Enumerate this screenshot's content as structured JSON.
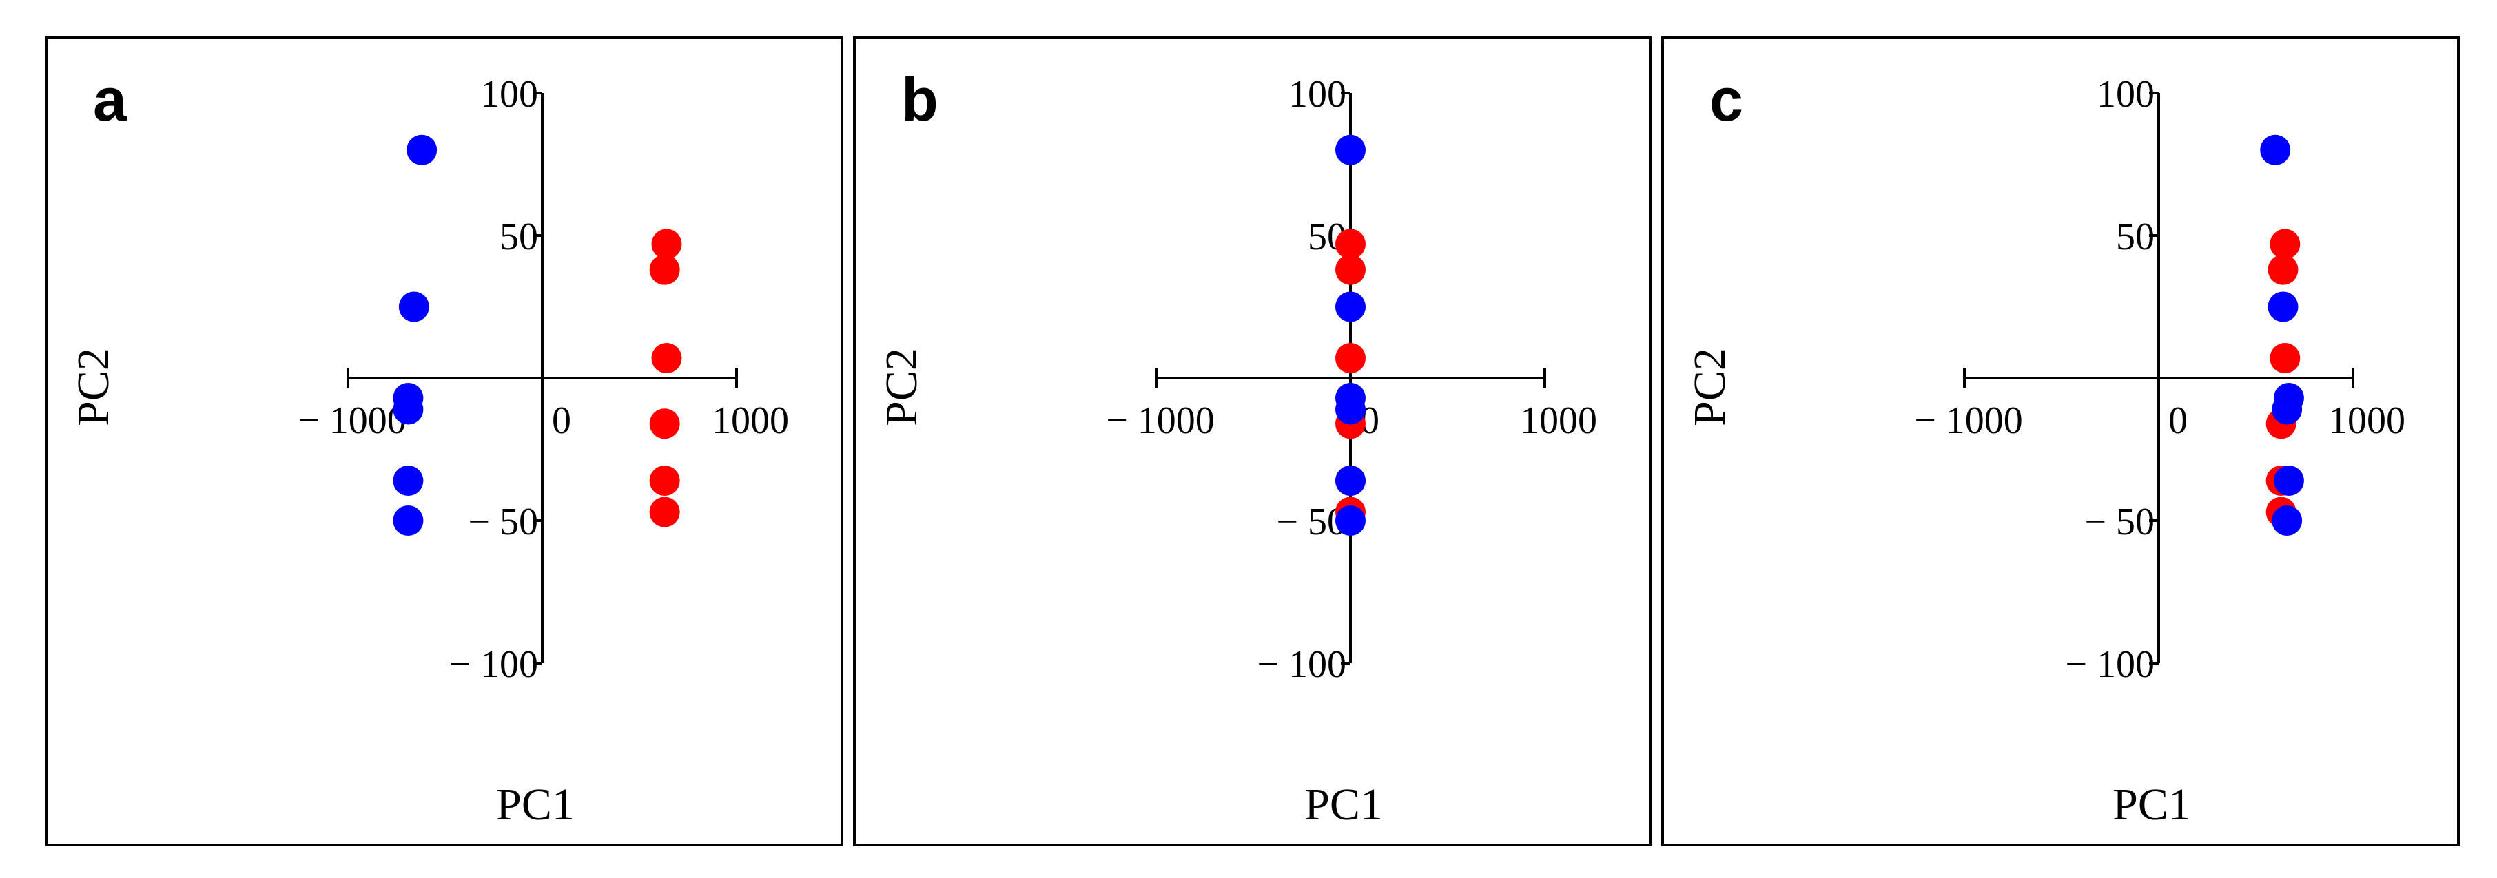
{
  "colors": {
    "group_red": "#ff0000",
    "group_blue": "#0000ff",
    "axes": "#000000",
    "background": "#ffffff"
  },
  "chart_data": [
    {
      "type": "scatter",
      "panel_label": "a",
      "xlabel": "PC1",
      "ylabel": "PC2",
      "xlim": [
        -1000,
        1000
      ],
      "ylim": [
        -100,
        100
      ],
      "x_ticks": [
        -1000,
        0,
        1000
      ],
      "x_tick_labels": [
        "− 1000",
        "0",
        "1000"
      ],
      "y_ticks": [
        -100,
        -50,
        50,
        100
      ],
      "y_tick_labels": [
        "− 100",
        "− 50",
        "50",
        "100"
      ],
      "series": [
        {
          "name": "red",
          "color": "#ff0000",
          "points": [
            [
              640,
              47
            ],
            [
              630,
              38
            ],
            [
              640,
              7
            ],
            [
              630,
              -16
            ],
            [
              630,
              -36
            ],
            [
              630,
              -47
            ]
          ]
        },
        {
          "name": "blue",
          "color": "#0000ff",
          "points": [
            [
              -620,
              80
            ],
            [
              -660,
              25
            ],
            [
              -690,
              -7
            ],
            [
              -690,
              -11
            ],
            [
              -690,
              -36
            ],
            [
              -690,
              -50
            ]
          ]
        }
      ]
    },
    {
      "type": "scatter",
      "panel_label": "b",
      "xlabel": "PC1",
      "ylabel": "PC2",
      "xlim": [
        -1000,
        1000
      ],
      "ylim": [
        -100,
        100
      ],
      "x_ticks": [
        -1000,
        0,
        1000
      ],
      "x_tick_labels": [
        "− 1000",
        "0",
        "1000"
      ],
      "y_ticks": [
        -100,
        -50,
        50,
        100
      ],
      "y_tick_labels": [
        "− 100",
        "− 50",
        "50",
        "100"
      ],
      "series": [
        {
          "name": "red",
          "color": "#ff0000",
          "points": [
            [
              0,
              47
            ],
            [
              0,
              38
            ],
            [
              0,
              7
            ],
            [
              0,
              -16
            ],
            [
              0,
              -36
            ],
            [
              0,
              -47
            ]
          ]
        },
        {
          "name": "blue",
          "color": "#0000ff",
          "points": [
            [
              0,
              80
            ],
            [
              0,
              25
            ],
            [
              0,
              -7
            ],
            [
              0,
              -11
            ],
            [
              0,
              -36
            ],
            [
              0,
              -50
            ]
          ]
        }
      ]
    },
    {
      "type": "scatter",
      "panel_label": "c",
      "xlabel": "PC1",
      "ylabel": "PC2",
      "xlim": [
        -1000,
        1000
      ],
      "ylim": [
        -100,
        100
      ],
      "x_ticks": [
        -1000,
        0,
        1000
      ],
      "x_tick_labels": [
        "− 1000",
        "0",
        "1000"
      ],
      "y_ticks": [
        -100,
        -50,
        50,
        100
      ],
      "y_tick_labels": [
        "− 100",
        "− 50",
        "50",
        "100"
      ],
      "series": [
        {
          "name": "red",
          "color": "#ff0000",
          "points": [
            [
              650,
              47
            ],
            [
              640,
              38
            ],
            [
              650,
              7
            ],
            [
              630,
              -16
            ],
            [
              630,
              -36
            ],
            [
              630,
              -47
            ]
          ]
        },
        {
          "name": "blue",
          "color": "#0000ff",
          "points": [
            [
              600,
              80
            ],
            [
              640,
              25
            ],
            [
              670,
              -7
            ],
            [
              660,
              -11
            ],
            [
              670,
              -36
            ],
            [
              660,
              -50
            ]
          ]
        }
      ]
    }
  ]
}
